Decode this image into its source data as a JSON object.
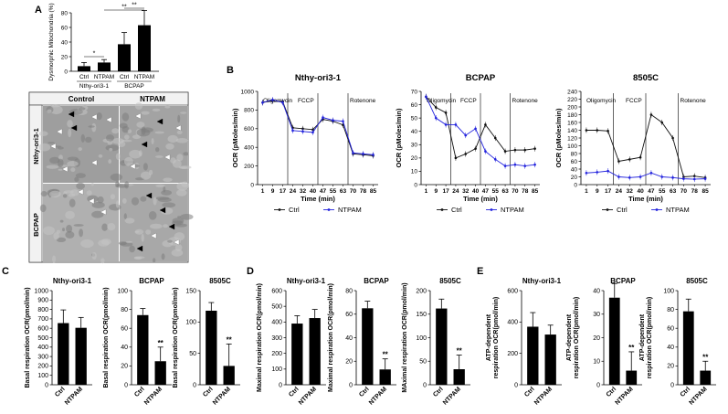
{
  "panels": {
    "A": "A",
    "B": "B",
    "C": "C",
    "D": "D",
    "E": "E"
  },
  "micrograph": {
    "col_labels": [
      "Control",
      "NTPAM"
    ],
    "row_labels": [
      "Nthy-ori3-1",
      "BCPAP"
    ]
  },
  "chart_data": [
    {
      "id": "A",
      "type": "bar",
      "ylabel": "Dysmorphic Mitochondria (%)",
      "yticks": [
        0,
        20,
        40,
        60,
        80
      ],
      "ylim": [
        0,
        80
      ],
      "categories": [
        "Ctrl",
        "NTPAM",
        "Ctrl",
        "NTPAM"
      ],
      "values": [
        7,
        12,
        37,
        63
      ],
      "errors": [
        5,
        4,
        16,
        20
      ],
      "groups": [
        "Nthy-ori3-1",
        "BCPAP"
      ],
      "significance": [
        "*",
        "**",
        "**"
      ]
    },
    {
      "id": "B1",
      "type": "line",
      "title": "Nthy-ori3-1",
      "ylabel": "OCR (pMoles/min)",
      "xlabel": "Time (min)",
      "yticks": [
        0,
        200,
        400,
        600,
        800,
        1000
      ],
      "ylim": [
        0,
        1000
      ],
      "x": [
        1,
        9,
        17,
        24,
        32,
        40,
        47,
        55,
        63,
        70,
        78,
        85
      ],
      "injections": [
        "Oligomycin",
        "FCCP",
        "Rotenone"
      ],
      "series": [
        {
          "name": "Ctrl",
          "color": "#111111",
          "values": [
            880,
            900,
            890,
            610,
            600,
            590,
            700,
            680,
            640,
            330,
            320,
            310
          ]
        },
        {
          "name": "NTPAM",
          "color": "#2222dd",
          "values": [
            880,
            910,
            880,
            580,
            570,
            560,
            720,
            690,
            680,
            340,
            330,
            320
          ]
        }
      ]
    },
    {
      "id": "B2",
      "type": "line",
      "title": "BCPAP",
      "ylabel": "OCR (pMoles/min)",
      "xlabel": "Time (min)",
      "yticks": [
        0,
        10,
        20,
        30,
        40,
        50,
        60,
        70
      ],
      "ylim": [
        0,
        70
      ],
      "x": [
        1,
        9,
        17,
        24,
        32,
        40,
        47,
        55,
        63,
        70,
        78,
        85
      ],
      "injections": [
        "Oligomycin",
        "FCCP",
        "Rotenone"
      ],
      "series": [
        {
          "name": "Ctrl",
          "color": "#111111",
          "values": [
            66,
            58,
            54,
            20,
            23,
            27,
            45,
            35,
            25,
            26,
            26,
            27
          ]
        },
        {
          "name": "NTPAM",
          "color": "#2222dd",
          "values": [
            66,
            50,
            45,
            45,
            37,
            42,
            25,
            19,
            14,
            15,
            14,
            15
          ]
        }
      ]
    },
    {
      "id": "B3",
      "type": "line",
      "title": "8505C",
      "ylabel": "OCR (pMoles/min)",
      "xlabel": "Time (min)",
      "yticks": [
        0,
        20,
        40,
        60,
        80,
        100,
        120,
        140,
        160,
        180,
        200,
        220,
        240
      ],
      "ylim": [
        0,
        240
      ],
      "x": [
        1,
        9,
        17,
        24,
        32,
        40,
        47,
        55,
        63,
        70,
        78,
        85
      ],
      "injections": [
        "Oligomycin",
        "FCCP",
        "Rotenone"
      ],
      "series": [
        {
          "name": "Ctrl",
          "color": "#111111",
          "values": [
            140,
            140,
            138,
            60,
            65,
            70,
            180,
            160,
            120,
            20,
            22,
            18
          ]
        },
        {
          "name": "NTPAM",
          "color": "#2222dd",
          "values": [
            30,
            32,
            35,
            20,
            18,
            20,
            30,
            20,
            18,
            15,
            14,
            15
          ]
        }
      ]
    },
    {
      "id": "C1",
      "type": "bar",
      "title": "Nthy-ori3-1",
      "ylabel": "Basal respiration OCR(pmol/min)",
      "yticks": [
        0,
        100,
        200,
        300,
        400,
        500,
        600,
        700,
        800,
        900,
        1000
      ],
      "ylim": [
        0,
        1000
      ],
      "categories": [
        "Ctrl",
        "NTPAM"
      ],
      "values": [
        655,
        605
      ],
      "errors": [
        140,
        110
      ],
      "significance": [
        "",
        ""
      ]
    },
    {
      "id": "C2",
      "type": "bar",
      "title": "BCPAP",
      "ylabel": "Basal respiration OCR(pmol/min)",
      "yticks": [
        0,
        20,
        40,
        60,
        80,
        100
      ],
      "ylim": [
        0,
        100
      ],
      "categories": [
        "Ctrl",
        "NTPAM"
      ],
      "values": [
        74,
        25
      ],
      "errors": [
        7,
        15
      ],
      "significance": [
        "",
        "**"
      ]
    },
    {
      "id": "C3",
      "type": "bar",
      "title": "8505C",
      "ylabel": "Basal respiration OCR(pmol/min)",
      "yticks": [
        0,
        50,
        100,
        150
      ],
      "ylim": [
        0,
        150
      ],
      "categories": [
        "Ctrl",
        "NTPAM"
      ],
      "values": [
        118,
        30
      ],
      "errors": [
        13,
        35
      ],
      "significance": [
        "",
        "**"
      ]
    },
    {
      "id": "D1",
      "type": "bar",
      "title": "Nthy-ori3-1",
      "ylabel": "Maximal respiration OCR(pmol/min)",
      "yticks": [
        0,
        100,
        200,
        300,
        400,
        500,
        600
      ],
      "ylim": [
        0,
        600
      ],
      "categories": [
        "Ctrl",
        "NTPAM"
      ],
      "values": [
        390,
        425
      ],
      "errors": [
        50,
        55
      ],
      "significance": [
        "",
        ""
      ]
    },
    {
      "id": "D2",
      "type": "bar",
      "title": "BCPAP",
      "ylabel": "Maximal respiration OCR(pmol/min)",
      "yticks": [
        0,
        20,
        40,
        60,
        80
      ],
      "ylim": [
        0,
        80
      ],
      "categories": [
        "Ctrl",
        "NTPAM"
      ],
      "values": [
        65,
        13
      ],
      "errors": [
        6,
        9
      ],
      "significance": [
        "",
        "**"
      ]
    },
    {
      "id": "D3",
      "type": "bar",
      "title": "8505C",
      "ylabel": "MAximal respiration OCR(pmol/min)",
      "yticks": [
        0,
        50,
        100,
        150,
        200
      ],
      "ylim": [
        0,
        200
      ],
      "categories": [
        "Ctrl",
        "NTPAM"
      ],
      "values": [
        162,
        33
      ],
      "errors": [
        20,
        30
      ],
      "significance": [
        "",
        "**"
      ]
    },
    {
      "id": "E1",
      "type": "bar",
      "title": "Nthy-ori3-1",
      "ylabel": "ATP-dependent respiration OCR(pmol/min)",
      "yticks": [
        0,
        200,
        400,
        600
      ],
      "ylim": [
        0,
        600
      ],
      "categories": [
        "Ctrl",
        "NTPAM"
      ],
      "values": [
        370,
        320
      ],
      "errors": [
        90,
        60
      ],
      "significance": [
        "",
        ""
      ]
    },
    {
      "id": "E2",
      "type": "bar",
      "title": "BCPAP",
      "ylabel": "ATP-dependent respiration OCR(pmol/min)",
      "yticks": [
        0,
        10,
        20,
        30,
        40
      ],
      "ylim": [
        0,
        40
      ],
      "categories": [
        "Ctrl",
        "NTPAM"
      ],
      "values": [
        37,
        6
      ],
      "errors": [
        6,
        8
      ],
      "significance": [
        "",
        "**"
      ]
    },
    {
      "id": "E3",
      "type": "bar",
      "title": "8505C",
      "ylabel": "ATP-dependent respiration OCR(pmol/min)",
      "yticks": [
        0,
        20,
        40,
        60,
        80,
        100
      ],
      "ylim": [
        0,
        100
      ],
      "categories": [
        "Ctrl",
        "NTPAM"
      ],
      "values": [
        78,
        15
      ],
      "errors": [
        13,
        10
      ],
      "significance": [
        "",
        "**"
      ]
    }
  ]
}
